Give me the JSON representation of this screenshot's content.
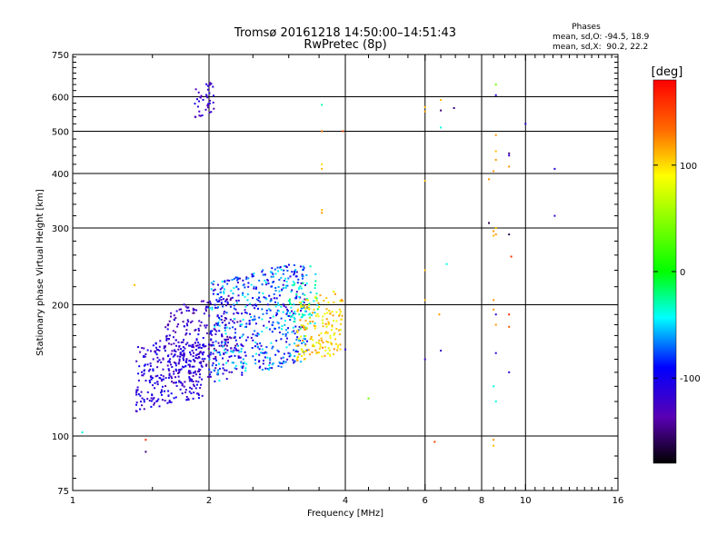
{
  "chart_data": {
    "type": "scatter",
    "title": "Tromsø 20161218 14:50:00–14:51:43",
    "subtitle": "RwPretec (8p)",
    "xlabel": "Frequency [MHz]",
    "ylabel": "Stationary phase Virtual Height [km]",
    "x_scale": "log",
    "y_scale": "log",
    "xlim": [
      1,
      16
    ],
    "ylim": [
      75,
      750
    ],
    "x_ticks": [
      1,
      2,
      4,
      6,
      8,
      10,
      16
    ],
    "y_ticks": [
      75,
      100,
      200,
      300,
      400,
      500,
      600,
      750
    ],
    "x_gridlines": [
      2,
      4,
      6,
      8,
      10
    ],
    "y_gridlines": [
      100,
      200,
      300,
      400,
      500,
      600
    ],
    "grid": true,
    "legend": {
      "title": "Phases",
      "line1": "mean, sd,O: -94.5, 18.9",
      "line2": "mean, sd,X:  90.2, 22.2",
      "placement": "top-right"
    },
    "colorbar": {
      "label": "[deg]",
      "ticks": [
        100,
        0,
        -100
      ],
      "range": [
        -180,
        180
      ],
      "placement": "right"
    },
    "clusters": [
      {
        "f_range": [
          1.38,
          1.95
        ],
        "h_range": [
          118,
          168
        ],
        "phase_range": [
          -130,
          -90
        ],
        "count": 280
      },
      {
        "f_range": [
          1.6,
          2.35
        ],
        "h_range": [
          135,
          205
        ],
        "phase_range": [
          -145,
          -100
        ],
        "count": 260
      },
      {
        "f_range": [
          2.0,
          3.3
        ],
        "h_range": [
          140,
          240
        ],
        "phase_range": [
          -120,
          -40
        ],
        "count": 520
      },
      {
        "f_range": [
          3.0,
          3.5
        ],
        "h_range": [
          175,
          230
        ],
        "phase_range": [
          -60,
          -20
        ],
        "count": 60
      },
      {
        "f_range": [
          3.1,
          3.95
        ],
        "h_range": [
          150,
          210
        ],
        "phase_range": [
          75,
          125
        ],
        "count": 170
      },
      {
        "f_range": [
          1.86,
          2.05
        ],
        "h_range": [
          545,
          640
        ],
        "phase_range": [
          -140,
          -100
        ],
        "count": 40
      }
    ],
    "points": [
      {
        "x": 1.05,
        "y": 102,
        "p": -40
      },
      {
        "x": 1.45,
        "y": 92,
        "p": -150
      },
      {
        "x": 1.45,
        "y": 98,
        "p": 160
      },
      {
        "x": 1.37,
        "y": 222,
        "p": 110
      },
      {
        "x": 3.35,
        "y": 245,
        "p": -30
      },
      {
        "x": 3.55,
        "y": 575,
        "p": -30
      },
      {
        "x": 3.55,
        "y": 500,
        "p": 130
      },
      {
        "x": 3.55,
        "y": 420,
        "p": 100
      },
      {
        "x": 3.55,
        "y": 410,
        "p": 110
      },
      {
        "x": 3.55,
        "y": 330,
        "p": 110
      },
      {
        "x": 3.55,
        "y": 325,
        "p": 120
      },
      {
        "x": 3.95,
        "y": 500,
        "p": 150
      },
      {
        "x": 4.0,
        "y": 158,
        "p": -110
      },
      {
        "x": 4.5,
        "y": 122,
        "p": 40
      },
      {
        "x": 6.0,
        "y": 568,
        "p": 110
      },
      {
        "x": 6.0,
        "y": 555,
        "p": 120
      },
      {
        "x": 6.0,
        "y": 385,
        "p": 110
      },
      {
        "x": 6.0,
        "y": 240,
        "p": 110
      },
      {
        "x": 6.0,
        "y": 205,
        "p": 110
      },
      {
        "x": 6.0,
        "y": 150,
        "p": -120
      },
      {
        "x": 6.3,
        "y": 97,
        "p": 150
      },
      {
        "x": 6.5,
        "y": 590,
        "p": 110
      },
      {
        "x": 6.5,
        "y": 558,
        "p": -150
      },
      {
        "x": 6.5,
        "y": 510,
        "p": -40
      },
      {
        "x": 6.45,
        "y": 190,
        "p": 120
      },
      {
        "x": 6.5,
        "y": 157,
        "p": -120
      },
      {
        "x": 6.7,
        "y": 248,
        "p": -40
      },
      {
        "x": 6.95,
        "y": 565,
        "p": -150
      },
      {
        "x": 8.3,
        "y": 388,
        "p": 120
      },
      {
        "x": 8.3,
        "y": 308,
        "p": -160
      },
      {
        "x": 8.5,
        "y": 405,
        "p": 120
      },
      {
        "x": 8.5,
        "y": 295,
        "p": 120
      },
      {
        "x": 8.5,
        "y": 288,
        "p": 110
      },
      {
        "x": 8.5,
        "y": 205,
        "p": 120
      },
      {
        "x": 8.5,
        "y": 195,
        "p": 120
      },
      {
        "x": 8.5,
        "y": 98,
        "p": 120
      },
      {
        "x": 8.5,
        "y": 95,
        "p": 110
      },
      {
        "x": 8.5,
        "y": 130,
        "p": -40
      },
      {
        "x": 8.6,
        "y": 640,
        "p": 40
      },
      {
        "x": 8.6,
        "y": 605,
        "p": -110
      },
      {
        "x": 8.6,
        "y": 490,
        "p": 120
      },
      {
        "x": 8.6,
        "y": 450,
        "p": 110
      },
      {
        "x": 8.6,
        "y": 430,
        "p": 120
      },
      {
        "x": 8.6,
        "y": 300,
        "p": 110
      },
      {
        "x": 8.6,
        "y": 290,
        "p": 120
      },
      {
        "x": 8.6,
        "y": 190,
        "p": -110
      },
      {
        "x": 8.6,
        "y": 180,
        "p": 120
      },
      {
        "x": 8.6,
        "y": 155,
        "p": -110
      },
      {
        "x": 8.6,
        "y": 120,
        "p": -40
      },
      {
        "x": 9.2,
        "y": 445,
        "p": -150
      },
      {
        "x": 9.2,
        "y": 440,
        "p": -110
      },
      {
        "x": 9.2,
        "y": 415,
        "p": 120
      },
      {
        "x": 9.2,
        "y": 290,
        "p": -160
      },
      {
        "x": 9.3,
        "y": 258,
        "p": 160
      },
      {
        "x": 9.2,
        "y": 190,
        "p": 160
      },
      {
        "x": 9.2,
        "y": 178,
        "p": 140
      },
      {
        "x": 9.2,
        "y": 140,
        "p": -110
      },
      {
        "x": 10.0,
        "y": 520,
        "p": -110
      },
      {
        "x": 11.6,
        "y": 410,
        "p": -110
      },
      {
        "x": 11.6,
        "y": 320,
        "p": -120
      }
    ]
  }
}
